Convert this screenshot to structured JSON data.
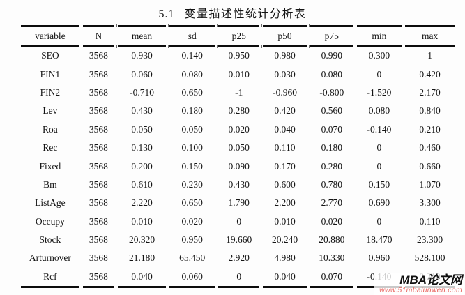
{
  "page": {
    "section_number": "5.1",
    "title": "变量描述性统计分析表"
  },
  "table": {
    "headers": [
      "variable",
      "N",
      "mean",
      "sd",
      "p25",
      "p50",
      "p75",
      "min",
      "max"
    ],
    "rows": [
      [
        "SEO",
        "3568",
        "0.930",
        "0.140",
        "0.950",
        "0.980",
        "0.990",
        "0.300",
        "1"
      ],
      [
        "FIN1",
        "3568",
        "0.060",
        "0.080",
        "0.010",
        "0.030",
        "0.080",
        "0",
        "0.420"
      ],
      [
        "FIN2",
        "3568",
        "-0.710",
        "0.650",
        "-1",
        "-0.960",
        "-0.800",
        "-1.520",
        "2.170"
      ],
      [
        "Lev",
        "3568",
        "0.430",
        "0.180",
        "0.280",
        "0.420",
        "0.560",
        "0.080",
        "0.840"
      ],
      [
        "Roa",
        "3568",
        "0.050",
        "0.050",
        "0.020",
        "0.040",
        "0.070",
        "-0.140",
        "0.210"
      ],
      [
        "Rec",
        "3568",
        "0.130",
        "0.100",
        "0.050",
        "0.110",
        "0.180",
        "0",
        "0.460"
      ],
      [
        "Fixed",
        "3568",
        "0.200",
        "0.150",
        "0.090",
        "0.170",
        "0.280",
        "0",
        "0.660"
      ],
      [
        "Bm",
        "3568",
        "0.610",
        "0.230",
        "0.430",
        "0.600",
        "0.780",
        "0.150",
        "1.070"
      ],
      [
        "ListAge",
        "3568",
        "2.220",
        "0.650",
        "1.790",
        "2.200",
        "2.770",
        "0.690",
        "3.300"
      ],
      [
        "Occupy",
        "3568",
        "0.010",
        "0.020",
        "0",
        "0.010",
        "0.020",
        "0",
        "0.110"
      ],
      [
        "Stock",
        "3568",
        "20.320",
        "0.950",
        "19.660",
        "20.240",
        "20.880",
        "18.470",
        "23.300"
      ],
      [
        "Arturnover",
        "3568",
        "21.180",
        "65.450",
        "2.920",
        "4.980",
        "10.330",
        "0.960",
        "528.100"
      ],
      [
        "Rcf",
        "3568",
        "0.040",
        "0.060",
        "0",
        "0.040",
        "0.070",
        "-0.140",
        "0.210"
      ]
    ]
  },
  "watermark": {
    "brand": "MBA论文网",
    "url": "www.51mbalunwen.com",
    "url_color": "#e8635e"
  },
  "colors": {
    "background": "#fdfdfd",
    "text": "#141414",
    "rule": "#0c0c0c",
    "watermark_url": "#e8635e"
  }
}
